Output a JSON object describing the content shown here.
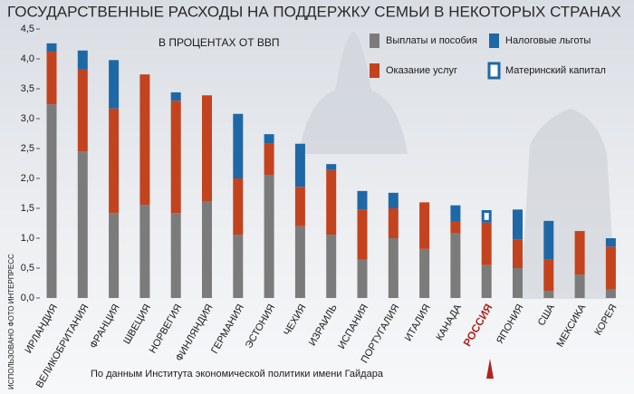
{
  "chart_data": {
    "type": "stacked_bar",
    "title": "ГОСУДАРСТВЕННЫЕ РАСХОДЫ НА ПОДДЕРЖКУ СЕМЬИ В НЕКОТОРЫХ СТРАНАХ",
    "subtitle": "В ПРОЦЕНТАХ ОТ ВВП",
    "source": "По данным Института экономической политики имени Гайдара",
    "photo_credit": "ИСПОЛЬЗОВАНО ФОТО ИНТЕРПРЕСС",
    "categories": [
      "ИРЛАНДИЯ",
      "ВЕЛИКОБРИТАНИЯ",
      "ФРАНЦИЯ",
      "ШВЕЦИЯ",
      "НОРВЕГИЯ",
      "ФИНЛЯНДИЯ",
      "ГЕРМАНИЯ",
      "ЭСТОНИЯ",
      "ЧЕХИЯ",
      "ИЗРАИЛЬ",
      "ИСПАНИЯ",
      "ПОРТУГАЛИЯ",
      "ИТАЛИЯ",
      "КАНАДА",
      "РОССИЯ",
      "ЯПОНИЯ",
      "США",
      "МЕКСИКА",
      "КОРЕЯ"
    ],
    "series": [
      {
        "name": "Выплаты и пособия",
        "color": "#7b7b7b",
        "values": [
          3.24,
          2.45,
          1.42,
          1.56,
          1.42,
          1.61,
          1.06,
          2.06,
          1.2,
          1.06,
          0.64,
          1.0,
          0.82,
          1.08,
          0.55,
          0.5,
          0.12,
          0.39,
          0.14
        ]
      },
      {
        "name": "Оказание услуг",
        "color": "#c2431e",
        "values": [
          0.88,
          1.37,
          1.75,
          2.18,
          1.88,
          1.78,
          0.94,
          0.53,
          0.66,
          1.08,
          0.84,
          0.5,
          0.78,
          0.2,
          0.71,
          0.48,
          0.52,
          0.73,
          0.72
        ]
      },
      {
        "name": "Налоговые льготы",
        "color": "#1f68a6",
        "values": [
          0.14,
          0.32,
          0.81,
          0,
          0.14,
          0,
          1.08,
          0.15,
          0.72,
          0.1,
          0.31,
          0.26,
          0,
          0.27,
          null,
          0.5,
          0.65,
          0,
          0.14
        ]
      },
      {
        "name": "Материнский капитал",
        "color": "#1f68a6",
        "values": [
          null,
          null,
          null,
          null,
          null,
          null,
          null,
          null,
          null,
          null,
          null,
          null,
          null,
          null,
          0.21,
          null,
          null,
          null,
          null
        ]
      }
    ],
    "ylim": [
      0,
      4.5
    ],
    "yticks": [
      {
        "value": 0,
        "label": "0,0"
      },
      {
        "value": 0.5,
        "label": "0,5"
      },
      {
        "value": 1,
        "label": "1,0"
      },
      {
        "value": 1.5,
        "label": "1,5"
      },
      {
        "value": 2,
        "label": "2,0"
      },
      {
        "value": 2.5,
        "label": "2,5"
      },
      {
        "value": 3,
        "label": "3,0"
      },
      {
        "value": 3.5,
        "label": "3,5"
      },
      {
        "value": 4,
        "label": "4,0"
      },
      {
        "value": 4.5,
        "label": "4,5"
      }
    ],
    "grid": false
  }
}
